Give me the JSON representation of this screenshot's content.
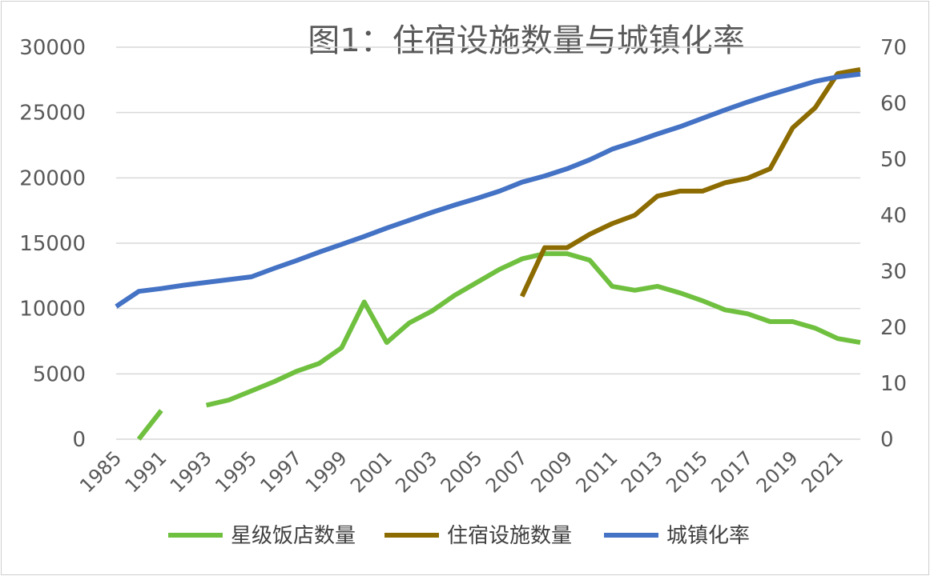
{
  "chart_data": {
    "type": "line",
    "title": "图1：住宿设施数量与城镇化率",
    "x": [
      "1985",
      "1990",
      "1991",
      "1992",
      "1993",
      "1994",
      "1995",
      "1996",
      "1997",
      "1998",
      "1999",
      "2000",
      "2001",
      "2002",
      "2003",
      "2004",
      "2005",
      "2006",
      "2007",
      "2008",
      "2009",
      "2010",
      "2011",
      "2012",
      "2013",
      "2014",
      "2015",
      "2016",
      "2017",
      "2018",
      "2019",
      "2020",
      "2021",
      "2022"
    ],
    "x_tick_labels": [
      "1985",
      "1991",
      "1993",
      "1995",
      "1997",
      "1999",
      "2001",
      "2003",
      "2005",
      "2007",
      "2009",
      "2011",
      "2013",
      "2015",
      "2017",
      "2019",
      "2021"
    ],
    "y_left": {
      "ticks": [
        0,
        5000,
        10000,
        15000,
        20000,
        25000,
        30000
      ],
      "range": [
        0,
        30000
      ]
    },
    "y_right": {
      "ticks": [
        0,
        10,
        20,
        30,
        40,
        50,
        60,
        70
      ],
      "range": [
        0,
        70
      ]
    },
    "series": [
      {
        "name": "星级饭店数量",
        "axis": "left",
        "color": "#70c040",
        "values": [
          null,
          0,
          2200,
          null,
          2600,
          3000,
          3700,
          4400,
          5200,
          5800,
          7000,
          10500,
          7400,
          8900,
          9800,
          11000,
          12000,
          13000,
          13800,
          14200,
          14200,
          13700,
          11700,
          11400,
          11700,
          11200,
          10600,
          9900,
          9600,
          9000,
          9000,
          8500,
          7700,
          7400
        ]
      },
      {
        "name": "住宿设施数量",
        "axis": "right",
        "color": "#8c6b00",
        "values": [
          null,
          null,
          null,
          null,
          null,
          null,
          null,
          null,
          null,
          null,
          null,
          null,
          null,
          null,
          null,
          null,
          null,
          null,
          25.5,
          34.2,
          34.2,
          36.6,
          38.5,
          40.0,
          43.4,
          44.3,
          44.3,
          45.8,
          46.6,
          48.3,
          55.6,
          59.2,
          65.3,
          66.0
        ]
      },
      {
        "name": "城镇化率",
        "axis": "right",
        "color": "#4472c4",
        "values": [
          23.7,
          26.4,
          26.9,
          27.5,
          28.0,
          28.5,
          29.0,
          30.5,
          31.9,
          33.4,
          34.8,
          36.2,
          37.7,
          39.1,
          40.5,
          41.8,
          43.0,
          44.3,
          45.9,
          47.0,
          48.3,
          49.9,
          51.8,
          53.1,
          54.5,
          55.8,
          57.3,
          58.8,
          60.2,
          61.5,
          62.7,
          63.9,
          64.7,
          65.2
        ]
      }
    ]
  }
}
